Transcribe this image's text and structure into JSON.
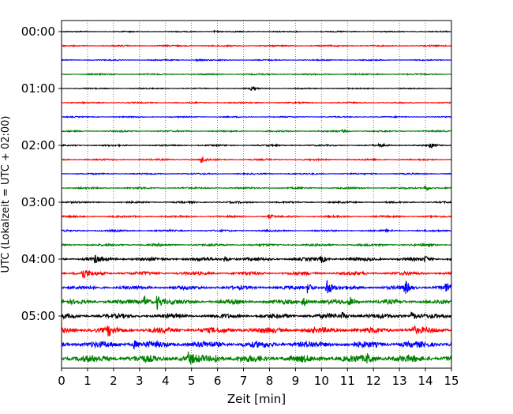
{
  "chart_data": {
    "type": "line",
    "title": "",
    "xlabel": "Zeit  [min]",
    "ylabel": "UTC (Lokalzeit = UTC + 02:00)",
    "xlim": [
      0,
      15
    ],
    "xticks": [
      "0",
      "1",
      "2",
      "3",
      "4",
      "5",
      "6",
      "7",
      "8",
      "9",
      "10",
      "11",
      "12",
      "13",
      "14",
      "15"
    ],
    "ytick_labels": [
      "00:00",
      "01:00",
      "02:00",
      "03:00",
      "04:00",
      "05:00"
    ],
    "rows_per_hour": 4,
    "row_minutes": 15,
    "num_rows": 24,
    "grid": "vertical dotted at each minute",
    "colors": [
      "#000000",
      "#ff0000",
      "#0000ff",
      "#008000"
    ],
    "relative_noise_by_row": [
      0.3,
      0.35,
      0.3,
      0.35,
      0.3,
      0.35,
      0.3,
      0.4,
      0.4,
      0.4,
      0.35,
      0.45,
      0.45,
      0.45,
      0.45,
      0.55,
      0.9,
      0.9,
      1.0,
      1.2,
      1.2,
      1.5,
      1.7,
      1.9
    ],
    "events": [
      {
        "row": 0,
        "minute": 5.9,
        "amp": 1
      },
      {
        "row": 2,
        "minute": 5.2,
        "amp": 1
      },
      {
        "row": 4,
        "minute": 7.3,
        "amp": 2
      },
      {
        "row": 7,
        "minute": 10.8,
        "amp": 1.5
      },
      {
        "row": 8,
        "minute": 12.2,
        "amp": 2.5
      },
      {
        "row": 8,
        "minute": 14.2,
        "amp": 3
      },
      {
        "row": 9,
        "minute": 5.4,
        "amp": 4
      },
      {
        "row": 11,
        "minute": 14.0,
        "amp": 4
      },
      {
        "row": 13,
        "minute": 8.0,
        "amp": 2
      },
      {
        "row": 14,
        "minute": 12.5,
        "amp": 2
      },
      {
        "row": 16,
        "minute": 1.3,
        "amp": 4
      },
      {
        "row": 16,
        "minute": 6.3,
        "amp": 3
      },
      {
        "row": 16,
        "minute": 10.0,
        "amp": 4
      },
      {
        "row": 16,
        "minute": 14.0,
        "amp": 3
      },
      {
        "row": 17,
        "minute": 0.8,
        "amp": 8
      },
      {
        "row": 18,
        "minute": 9.5,
        "amp": 6
      },
      {
        "row": 18,
        "minute": 10.2,
        "amp": 12
      },
      {
        "row": 18,
        "minute": 13.2,
        "amp": 9
      },
      {
        "row": 18,
        "minute": 14.8,
        "amp": 5
      },
      {
        "row": 19,
        "minute": 3.2,
        "amp": 7
      },
      {
        "row": 19,
        "minute": 3.7,
        "amp": 9
      },
      {
        "row": 19,
        "minute": 9.3,
        "amp": 6
      },
      {
        "row": 19,
        "minute": 11.1,
        "amp": 5
      },
      {
        "row": 20,
        "minute": 10.8,
        "amp": 4
      },
      {
        "row": 20,
        "minute": 13.5,
        "amp": 4
      },
      {
        "row": 21,
        "minute": 1.8,
        "amp": 5
      },
      {
        "row": 21,
        "minute": 13.5,
        "amp": 5
      },
      {
        "row": 22,
        "minute": 2.8,
        "amp": 4
      },
      {
        "row": 23,
        "minute": 4.9,
        "amp": 6
      },
      {
        "row": 23,
        "minute": 5.9,
        "amp": 6
      },
      {
        "row": 23,
        "minute": 11.8,
        "amp": 5
      }
    ]
  }
}
